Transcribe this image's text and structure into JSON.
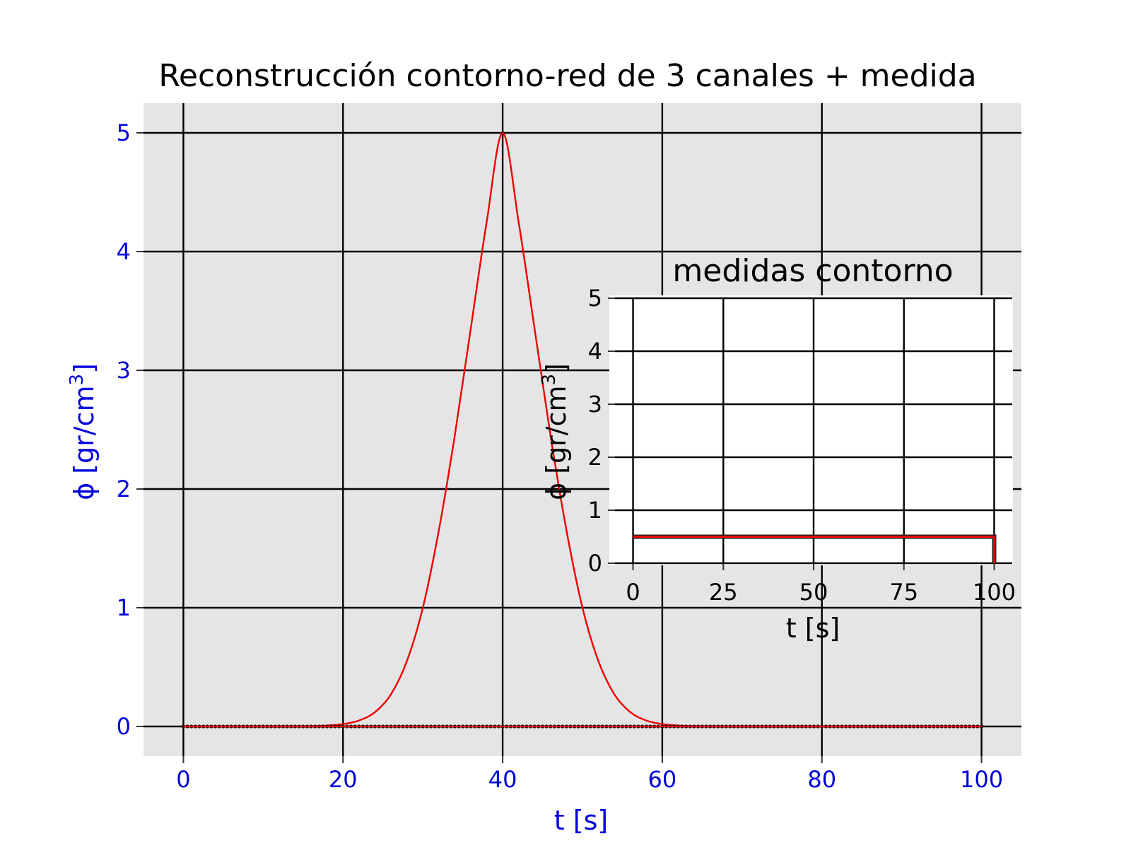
{
  "colors": {
    "axes_text": "#0000dd",
    "curve": "#ee0000",
    "grid": "#000000",
    "panel_bg": "#e5e5e5",
    "markers": "#111111"
  },
  "chart_data": [
    {
      "type": "line",
      "title": "Reconstrucción contorno-red de 3 canales + medida",
      "xlabel": "t [s]",
      "ylabel_text": "ϕ [gr/cm",
      "ylabel_sup": "3",
      "ylabel_close": "]",
      "xlim": [
        -5,
        105
      ],
      "ylim": [
        -0.25,
        5.25
      ],
      "xticks": [
        0,
        20,
        40,
        60,
        80,
        100
      ],
      "yticks": [
        0,
        1,
        2,
        3,
        4,
        5
      ],
      "grid": true,
      "series": [
        {
          "kind": "line",
          "x": [
            0,
            10,
            15,
            18,
            20,
            22,
            24,
            26,
            28,
            30,
            32,
            34,
            36,
            38,
            40,
            42,
            44,
            46,
            48,
            50,
            52,
            54,
            56,
            58,
            60,
            62,
            65,
            70,
            80,
            90,
            100
          ],
          "y": [
            0,
            0,
            0.001,
            0.008,
            0.02,
            0.05,
            0.12,
            0.27,
            0.55,
            1.0,
            1.65,
            2.45,
            3.35,
            4.25,
            5.0,
            4.25,
            3.35,
            2.45,
            1.65,
            1.0,
            0.55,
            0.27,
            0.12,
            0.05,
            0.02,
            0.008,
            0.001,
            0,
            0,
            0,
            0
          ]
        },
        {
          "kind": "markers",
          "x_start": 0,
          "x_end": 100,
          "x_step": 0.5,
          "y": 0
        }
      ]
    },
    {
      "type": "line",
      "title": "medidas contorno",
      "xlabel": "t [s]",
      "ylabel_text": "ϕ [gr/cm",
      "ylabel_sup": "3",
      "ylabel_close": "]",
      "xlim": [
        -5,
        105
      ],
      "ylim": [
        0,
        5
      ],
      "xticks": [
        0,
        25,
        50,
        75,
        100
      ],
      "yticks": [
        0,
        1,
        2,
        3,
        4,
        5
      ],
      "grid": true,
      "series": [
        {
          "kind": "step",
          "x": [
            0,
            100,
            100
          ],
          "y": [
            0.5,
            0.5,
            0
          ]
        }
      ]
    }
  ]
}
